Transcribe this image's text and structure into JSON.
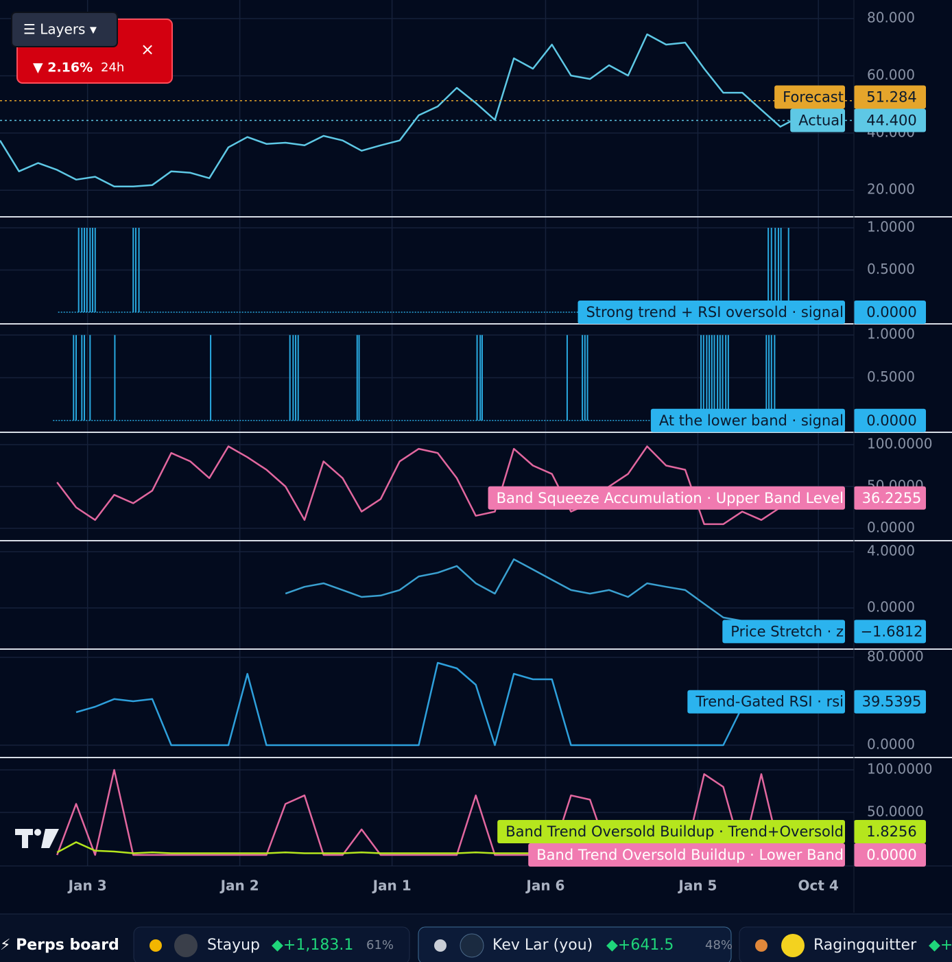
{
  "ui": {
    "menu": "☰ Layers ▾",
    "change": "▼ 2.16%",
    "period": "24h",
    "close": "×"
  },
  "chart_data": {
    "type": "panes",
    "x": [
      0,
      3,
      6,
      9,
      12,
      15,
      18,
      21,
      24,
      27,
      30,
      33,
      36,
      39,
      42,
      45,
      48,
      51,
      54,
      57,
      60,
      63,
      66,
      69,
      72,
      75,
      78,
      81,
      84,
      87,
      90,
      93,
      96,
      99,
      102,
      105,
      108,
      111,
      114,
      117,
      120,
      123,
      126,
      129,
      132
    ],
    "xlim": [
      0,
      134.6
    ],
    "xticks": [
      {
        "value": 13.8,
        "label": "Jan 3"
      },
      {
        "value": 37.8,
        "label": "Jan 2"
      },
      {
        "value": 61.8,
        "label": "Jan 1"
      },
      {
        "value": 86,
        "label": "Jan 6"
      },
      {
        "value": 110,
        "label": "Jan 5"
      },
      {
        "value": 129,
        "label": "Oct 4"
      }
    ],
    "grid": true,
    "panes": [
      {
        "type": "line",
        "ylim": [
          10.7,
          86.5
        ],
        "yticks": [
          {
            "value": 20,
            "label": "20.000"
          },
          {
            "value": 40,
            "label": "40.000"
          },
          {
            "value": 60,
            "label": "60.000"
          },
          {
            "value": 80,
            "label": "80.000"
          }
        ],
        "series": [
          {
            "color": "#5ec8e5",
            "values": [
              37.4,
              26.6,
              29.5,
              27.1,
              23.7,
              24.7,
              21.3,
              21.3,
              21.8,
              26.6,
              26.1,
              24.2,
              35.0,
              38.6,
              36.2,
              36.6,
              35.7,
              39.0,
              37.4,
              33.8,
              35.7,
              37.4,
              46.2,
              49.3,
              55.8,
              50.5,
              44.6,
              66.1,
              62.5,
              70.9,
              60.1,
              58.9,
              63.7,
              60.1,
              74.5,
              70.9,
              71.6,
              62.5,
              54.1,
              54.1,
              48.1,
              42.2,
              45.7,
              null,
              null
            ]
          }
        ],
        "levels": [
          {
            "name": "Forecast",
            "value": 51.284,
            "label": "51.284",
            "color": "#e5a52b"
          },
          {
            "name": "Actual",
            "value": 44.4,
            "label": "44.400",
            "color": "#5ec8e5"
          }
        ]
      },
      {
        "type": "spikes",
        "ylim": [
          -0.138,
          1.13
        ],
        "yticks": [
          {
            "value": 0.5,
            "label": "0.5000"
          },
          {
            "value": 1,
            "label": "1.0000"
          }
        ],
        "series": [
          {
            "name": "Strong trend + RSI oversold · signal",
            "color": "#29a9e0",
            "x": [
              12.4,
              12.9,
              13.3,
              13.7,
              14.2,
              14.6,
              15.0,
              21.0,
              21.4,
              21.9,
              121.1,
              121.6,
              122.2,
              122.7,
              123.1,
              124.3
            ],
            "values": [
              1,
              1,
              1,
              1,
              1,
              1,
              1,
              1,
              1,
              1,
              1,
              1,
              1,
              1,
              1,
              1
            ],
            "last_value": 0,
            "last_label": "0.0000"
          }
        ]
      },
      {
        "type": "spikes",
        "ylim": [
          -0.138,
          1.13
        ],
        "yticks": [
          {
            "value": 0.5,
            "label": "0.5000"
          },
          {
            "value": 1,
            "label": "1.0000"
          }
        ],
        "series": [
          {
            "name": "At the lower band · signal",
            "color": "#29a9e0",
            "x": [
              11.6,
              12.0,
              12.9,
              13.3,
              14.2,
              18.1,
              33.2,
              45.7,
              46.2,
              46.6,
              47.0,
              56.3,
              56.6,
              75.2,
              75.7,
              76.0,
              89.4,
              91.8,
              92.2,
              92.6,
              110.5,
              110.9,
              111.4,
              111.8,
              112.2,
              112.6,
              113.1,
              113.5,
              113.9,
              114.4,
              114.8,
              120.8,
              121.2,
              121.6,
              122.1
            ],
            "values": [
              1,
              1,
              1,
              1,
              1,
              1,
              1,
              1,
              1,
              1,
              1,
              1,
              1,
              1,
              1,
              1,
              1,
              1,
              1,
              1,
              1,
              1,
              1,
              1,
              1,
              1,
              1,
              1,
              1,
              1,
              1,
              1,
              1,
              1,
              1
            ],
            "last_value": 0,
            "last_label": "0.0000"
          }
        ]
      },
      {
        "type": "line",
        "ylim": [
          -14.8,
          114.8
        ],
        "yticks": [
          {
            "value": 0,
            "label": "0.0000"
          },
          {
            "value": 50,
            "label": "50.0000"
          },
          {
            "value": 100,
            "label": "100.0000"
          }
        ],
        "series": [
          {
            "name": "Band Squeeze Accumulation · Upper Band Level",
            "color": "#e2679f",
            "values": [
              null,
              null,
              null,
              55,
              25,
              10,
              40,
              30,
              45,
              90,
              80,
              60,
              98,
              85,
              70,
              50,
              10,
              80,
              60,
              20,
              35,
              80,
              95,
              90,
              60,
              15,
              20,
              95,
              75,
              65,
              20,
              30,
              50,
              65,
              98,
              75,
              70,
              5,
              5,
              20,
              10,
              25,
              null,
              null,
              null
            ],
            "last_value": 36.2255,
            "last_label": "36.2255"
          }
        ]
      },
      {
        "type": "line",
        "ylim": [
          -2.93,
          4.78
        ],
        "yticks": [
          {
            "value": 0,
            "label": "0.0000"
          },
          {
            "value": 4,
            "label": "4.0000"
          }
        ],
        "series": [
          {
            "name": "Price Stretch · z",
            "color": "#3aa0d0",
            "values": [
              null,
              null,
              null,
              null,
              null,
              null,
              null,
              null,
              null,
              null,
              null,
              null,
              null,
              null,
              null,
              1.02,
              1.5,
              1.75,
              1.27,
              0.78,
              0.88,
              1.27,
              2.24,
              2.5,
              2.98,
              1.75,
              1.02,
              3.46,
              2.73,
              2.0,
              1.27,
              1.02,
              1.27,
              0.78,
              1.75,
              1.5,
              1.27,
              0.29,
              -0.68,
              -0.93,
              -1.2,
              null,
              null,
              null,
              null
            ],
            "last_value": -1.6812,
            "last_label": "−1.6812"
          }
        ]
      },
      {
        "type": "line",
        "ylim": [
          -11.25,
          87.5
        ],
        "yticks": [
          {
            "value": 0,
            "label": "0.0000"
          },
          {
            "value": 80,
            "label": "80.0000"
          }
        ],
        "series": [
          {
            "name": "Trend-Gated RSI · rsi",
            "color": "#2ea0dc",
            "values": [
              null,
              null,
              null,
              null,
              30,
              35,
              42,
              40,
              42,
              0,
              0,
              0,
              0,
              65,
              0,
              0,
              0,
              0,
              0,
              0,
              0,
              0,
              0,
              75,
              70,
              55,
              0,
              65,
              60,
              60,
              0,
              0,
              0,
              0,
              0,
              0,
              0,
              0,
              0,
              35,
              40,
              39.5,
              null,
              null,
              null
            ],
            "last_value": 39.5395,
            "last_label": "39.5395"
          }
        ]
      },
      {
        "type": "line",
        "ylim": [
          -12.9,
          114.5
        ],
        "yticks": [
          {
            "value": 50,
            "label": "50.0000"
          },
          {
            "value": 100,
            "label": "100.0000"
          }
        ],
        "series": [
          {
            "name": "Band Trend Oversold Buildup · Lower Band",
            "color": "#e2679f",
            "values": [
              null,
              null,
              null,
              0,
              60,
              0,
              100,
              0,
              0,
              0,
              0,
              0,
              0,
              0,
              0,
              60,
              70,
              0,
              0,
              30,
              0,
              0,
              0,
              0,
              0,
              70,
              0,
              0,
              0,
              0,
              70,
              65,
              0,
              0,
              0,
              0,
              0,
              95,
              80,
              0,
              95,
              0,
              null,
              null,
              null
            ],
            "last_value": 0,
            "last_label": "0.0000"
          },
          {
            "name": "Band Trend Oversold Buildup · Trend+Oversold",
            "color": "#b5e61d",
            "values": [
              null,
              null,
              null,
              3,
              15,
              5,
              4,
              2,
              3,
              2,
              2,
              2,
              2,
              2,
              2,
              3,
              2,
              2,
              2,
              3,
              2,
              2,
              2,
              2,
              2,
              3,
              2,
              2,
              2,
              2,
              2,
              2,
              2,
              2,
              2,
              2,
              2,
              2,
              2,
              2,
              2,
              2,
              null,
              null,
              null
            ],
            "last_value": 1.8256,
            "last_label": "1.8256"
          }
        ]
      }
    ]
  },
  "footer": {
    "title": "⚡ Perps board",
    "entries": [
      {
        "name": "Stayup",
        "score": "◆+1,183.1",
        "pct": "61%"
      },
      {
        "name": "Kev Lar (you)",
        "score": "◆+641.5",
        "pct": "48%"
      },
      {
        "name": "Ragingquitter",
        "score": "◆+"
      }
    ]
  }
}
